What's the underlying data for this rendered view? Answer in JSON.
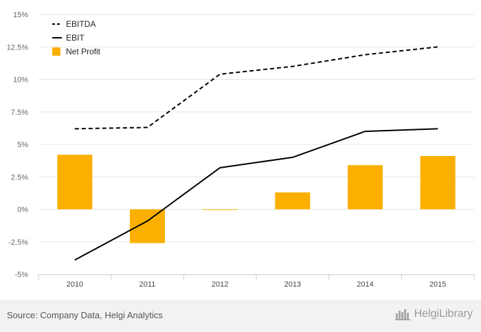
{
  "chart_data": {
    "type": "bar",
    "categories": [
      "2010",
      "2011",
      "2012",
      "2013",
      "2014",
      "2015"
    ],
    "y_ticks": [
      "15%",
      "12.5%",
      "10%",
      "7.5%",
      "5%",
      "2.5%",
      "0%",
      "-2.5%",
      "-5%"
    ],
    "ylim": [
      -5,
      15
    ],
    "grid": true,
    "legend": "top-left",
    "series": [
      {
        "name": "EBITDA",
        "kind": "line",
        "style": "dashed",
        "color": "#000000",
        "values": [
          6.2,
          6.3,
          10.4,
          11.0,
          11.9,
          12.5
        ]
      },
      {
        "name": "EBIT",
        "kind": "line",
        "style": "solid",
        "color": "#000000",
        "values": [
          -3.9,
          -0.9,
          3.2,
          4.0,
          6.0,
          6.2
        ]
      },
      {
        "name": "Net Profit",
        "kind": "bar",
        "color": "#FBB000",
        "values": [
          4.2,
          -2.6,
          -0.05,
          1.3,
          3.4,
          4.1
        ]
      }
    ]
  },
  "footer": {
    "source": "Source: Company Data, Helgi Analytics",
    "brand_name": "HelgiLibrary",
    "brand_icon": "helgi-library-logo-icon"
  }
}
